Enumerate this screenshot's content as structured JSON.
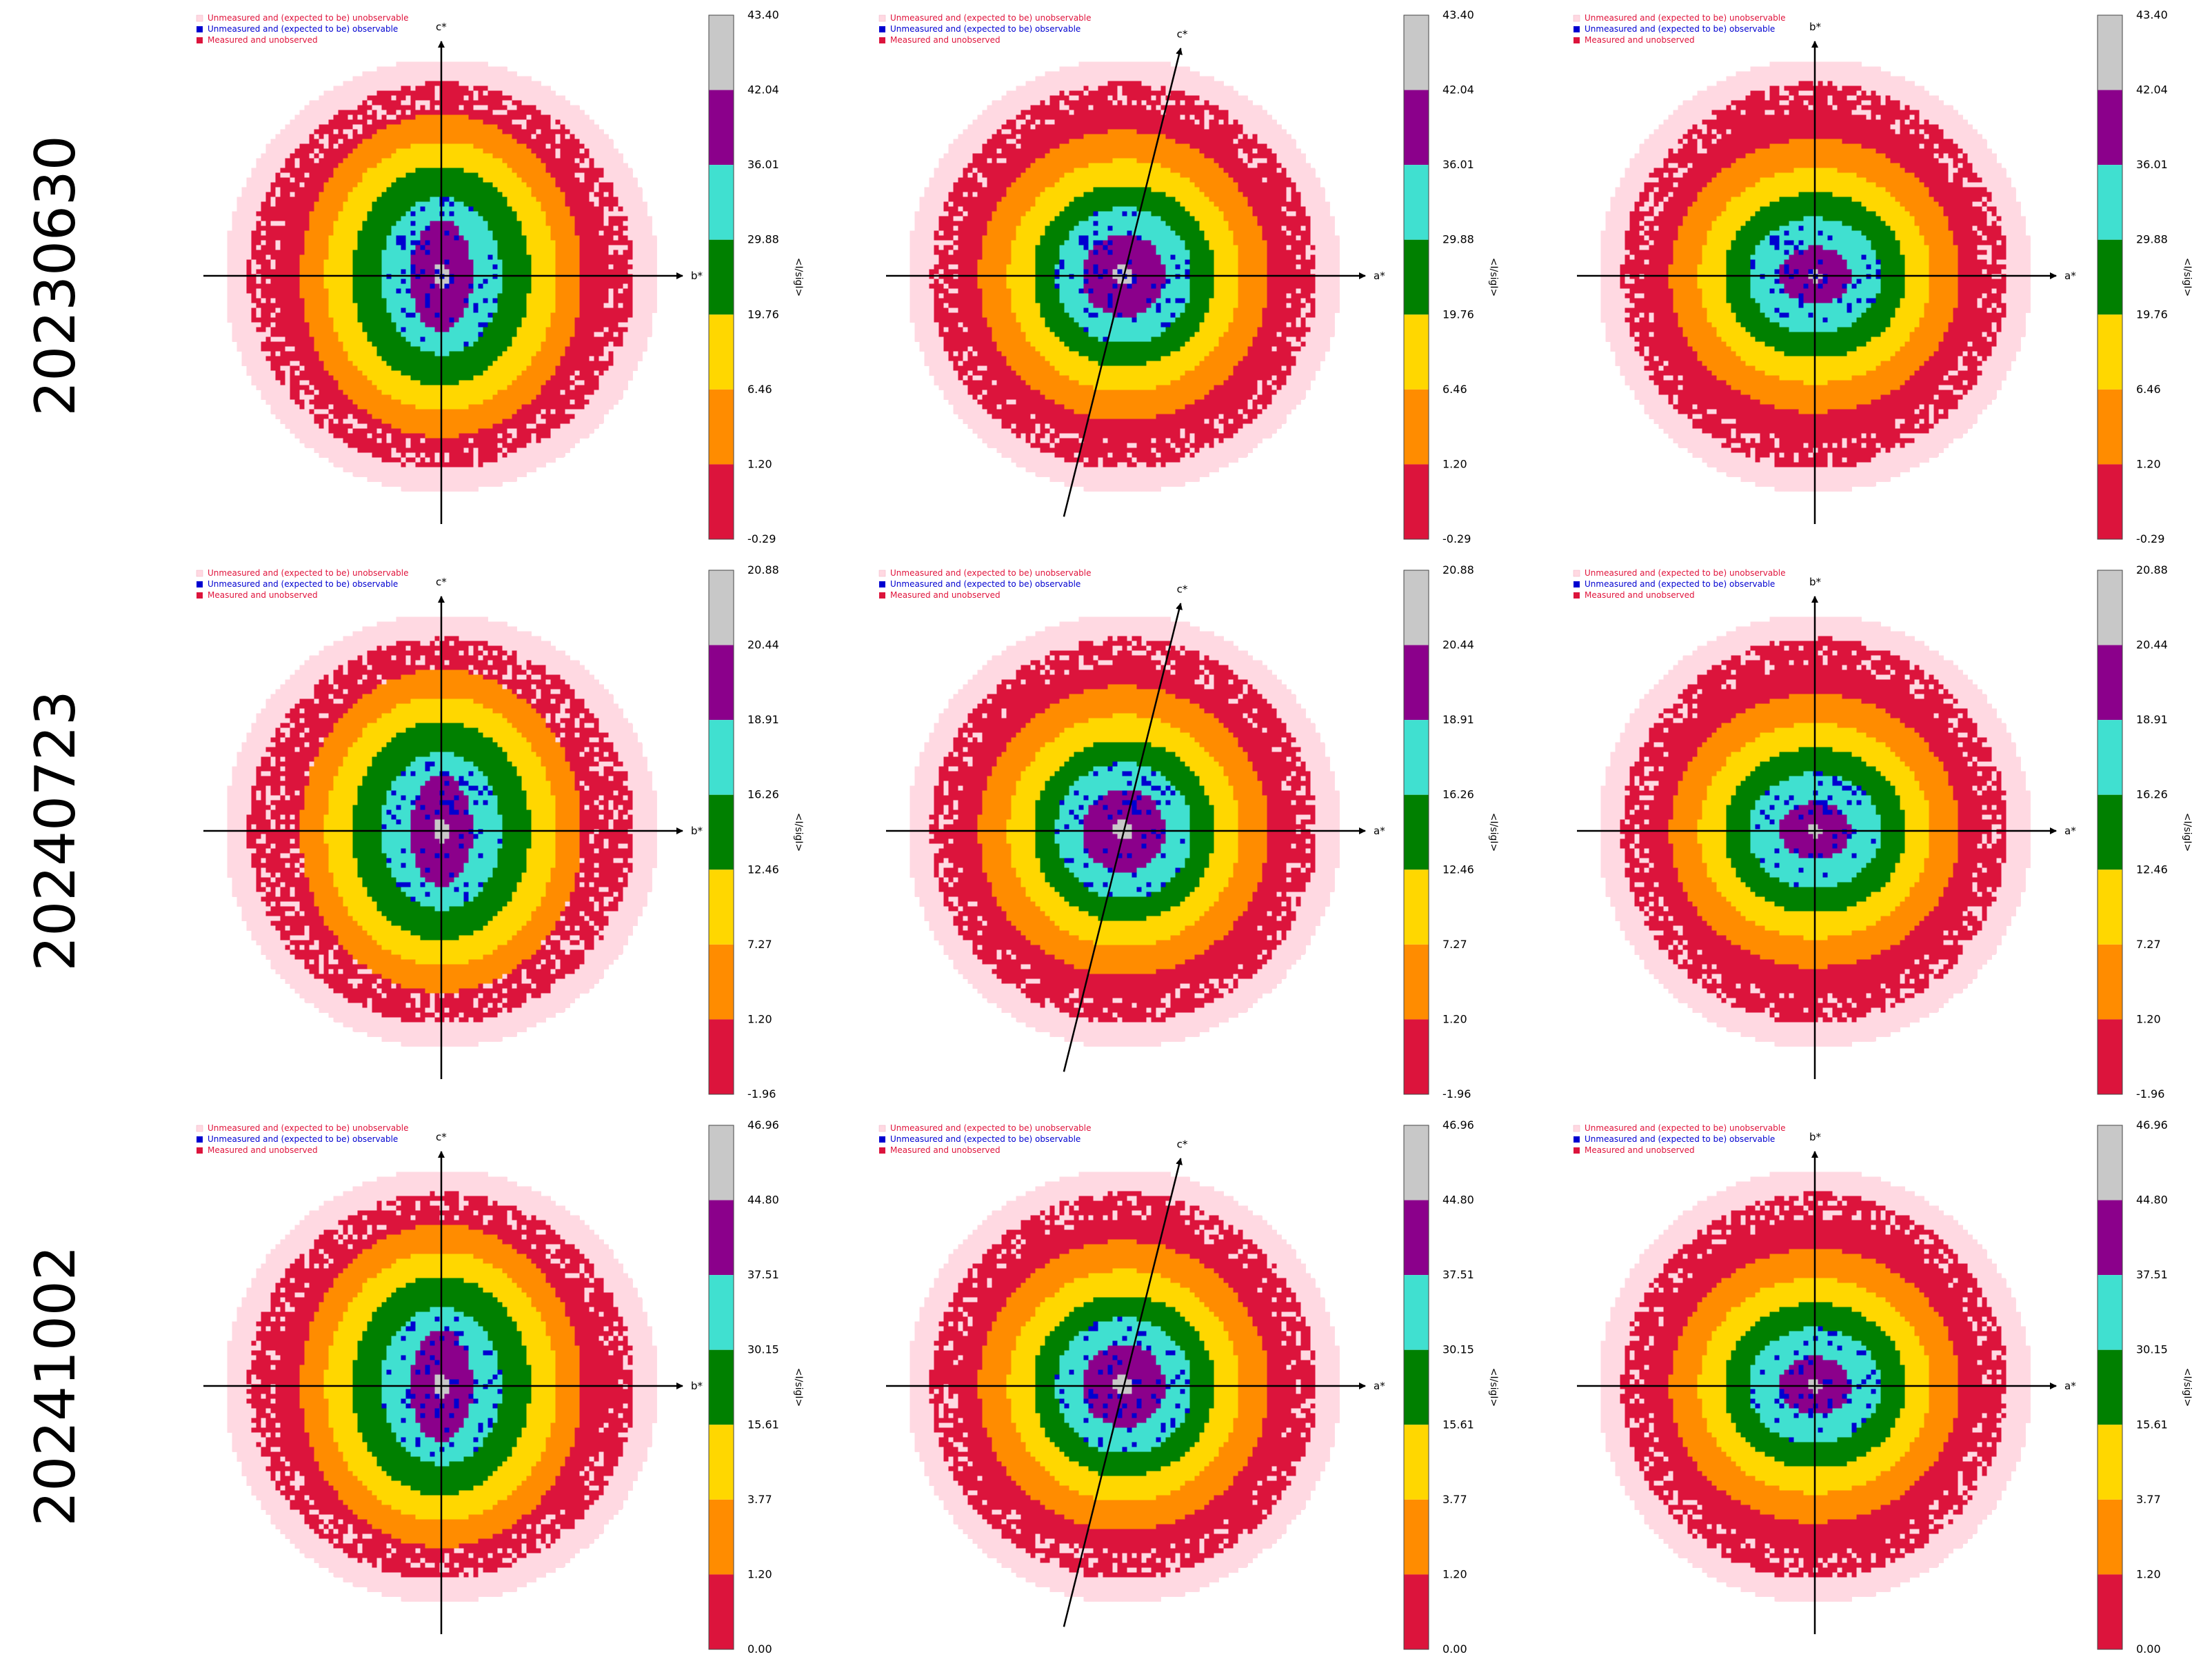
{
  "rows": [
    {
      "label": "20230630",
      "ticks": [
        "43.40",
        "42.04",
        "36.01",
        "29.88",
        "19.76",
        "6.46",
        "1.20",
        "-0.29"
      ]
    },
    {
      "label": "20240723",
      "ticks": [
        "20.88",
        "20.44",
        "18.91",
        "16.26",
        "12.46",
        "7.27",
        "1.20",
        "-1.96"
      ]
    },
    {
      "label": "20241002",
      "ticks": [
        "46.96",
        "44.80",
        "37.51",
        "30.15",
        "15.61",
        "3.77",
        "1.20",
        "0.00"
      ]
    }
  ],
  "columns": [
    {
      "horizontal_axis": "b*",
      "vertical_axis": "c*",
      "tilt_deg": 0
    },
    {
      "horizontal_axis": "a*",
      "vertical_axis": "c*",
      "tilt_deg": 14
    },
    {
      "horizontal_axis": "a*",
      "vertical_axis": "b*",
      "tilt_deg": 0
    }
  ],
  "legend": [
    {
      "label": "Unmeasured and (expected to be) unobservable",
      "color": "#ffd9e2"
    },
    {
      "label": "Unmeasured and (expected to be) observable",
      "color": "#0000d0"
    },
    {
      "label": "Measured and unobserved",
      "color": "#dc143c"
    }
  ],
  "colorbar_label": "<I/sigI>",
  "chart_data": {
    "type": "heatmap",
    "description_of_levels": "Seven binned <I/sigI> levels, colour bands from outer to inner shells",
    "level_colors": [
      "#dc143c",
      "#ff8c00",
      "#ffd700",
      "#008000",
      "#40e0d0",
      "#8b008b",
      "#c8c8c8"
    ],
    "panels": [
      {
        "row": "20230630",
        "plane": "b*-c*",
        "bin_edges": [
          -0.29,
          1.2,
          6.46,
          19.76,
          29.88,
          36.01,
          42.04,
          43.4
        ]
      },
      {
        "row": "20230630",
        "plane": "a*-c*",
        "bin_edges": [
          -0.29,
          1.2,
          6.46,
          19.76,
          29.88,
          36.01,
          42.04,
          43.4
        ]
      },
      {
        "row": "20230630",
        "plane": "a*-b*",
        "bin_edges": [
          -0.29,
          1.2,
          6.46,
          19.76,
          29.88,
          36.01,
          42.04,
          43.4
        ]
      },
      {
        "row": "20240723",
        "plane": "b*-c*",
        "bin_edges": [
          -1.96,
          1.2,
          7.27,
          12.46,
          16.26,
          18.91,
          20.44,
          20.88
        ]
      },
      {
        "row": "20240723",
        "plane": "a*-c*",
        "bin_edges": [
          -1.96,
          1.2,
          7.27,
          12.46,
          16.26,
          18.91,
          20.44,
          20.88
        ]
      },
      {
        "row": "20240723",
        "plane": "a*-b*",
        "bin_edges": [
          -1.96,
          1.2,
          7.27,
          12.46,
          16.26,
          18.91,
          20.44,
          20.88
        ]
      },
      {
        "row": "20241002",
        "plane": "b*-c*",
        "bin_edges": [
          0.0,
          1.2,
          3.77,
          15.61,
          30.15,
          37.51,
          44.8,
          46.96
        ]
      },
      {
        "row": "20241002",
        "plane": "a*-c*",
        "bin_edges": [
          0.0,
          1.2,
          3.77,
          15.61,
          30.15,
          37.51,
          44.8,
          46.96
        ]
      },
      {
        "row": "20241002",
        "plane": "a*-b*",
        "bin_edges": [
          0.0,
          1.2,
          3.77,
          15.61,
          30.15,
          37.51,
          44.8,
          46.96
        ]
      }
    ]
  }
}
